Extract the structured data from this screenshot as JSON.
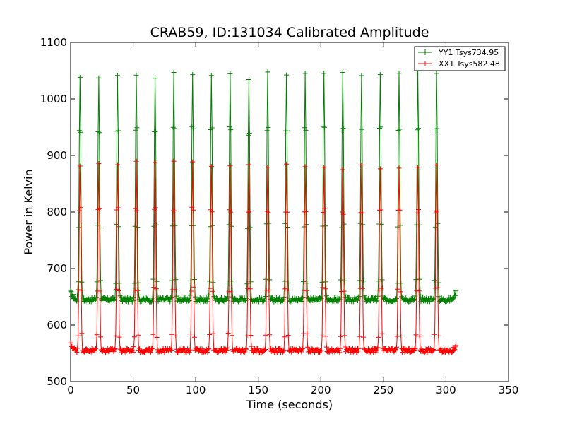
{
  "chart_data": {
    "type": "line",
    "title": "CRAB59, ID:131034 Calibrated Amplitude",
    "xlabel": "Time (seconds)",
    "ylabel": "Power in Kelvin",
    "xlim": [
      0,
      350
    ],
    "ylim": [
      500,
      1100
    ],
    "x_ticks": [
      0,
      50,
      100,
      150,
      200,
      250,
      300,
      350
    ],
    "y_ticks": [
      500,
      600,
      700,
      800,
      900,
      1000,
      1100
    ],
    "x_tick_labels": [
      "0",
      "50",
      "100",
      "150",
      "200",
      "250",
      "300",
      "350"
    ],
    "y_tick_labels": [
      "500",
      "600",
      "700",
      "800",
      "900",
      "1000",
      "1100"
    ],
    "grid": false,
    "legend_position": "upper right",
    "marker": "+",
    "series": [
      {
        "name": "YY1 Tsys734.95",
        "color": "#008000",
        "baseline": 645,
        "start_value": 657,
        "end_value": 658,
        "x_start": 0,
        "x_end": 308,
        "peak_times": [
          7.5,
          22.5,
          37.5,
          52.5,
          67.5,
          82.5,
          97.5,
          112.5,
          127.5,
          142.5,
          157.5,
          172.5,
          187.5,
          202.5,
          217.5,
          232.5,
          247.5,
          262.5,
          277.5,
          292.5
        ],
        "peak_values": [
          1040,
          1038,
          1039,
          1044,
          1038,
          1045,
          1046,
          1044,
          1044,
          1031,
          1044,
          1044,
          1044,
          1044,
          1043,
          1043,
          1045,
          1045,
          1043,
          1043
        ]
      },
      {
        "name": "XX1 Tsys582.48",
        "color": "#ff0000",
        "baseline": 555,
        "start_value": 565,
        "end_value": 563,
        "x_start": 0,
        "x_end": 308,
        "peak_times": [
          7.5,
          22.5,
          37.5,
          52.5,
          67.5,
          82.5,
          97.5,
          112.5,
          127.5,
          142.5,
          157.5,
          172.5,
          187.5,
          202.5,
          217.5,
          232.5,
          247.5,
          262.5,
          277.5,
          292.5
        ],
        "peak_values": [
          885,
          884,
          884,
          886,
          884,
          886,
          886,
          884,
          882,
          883,
          882,
          882,
          882,
          882,
          878,
          880,
          880,
          879,
          880,
          880
        ]
      }
    ]
  }
}
